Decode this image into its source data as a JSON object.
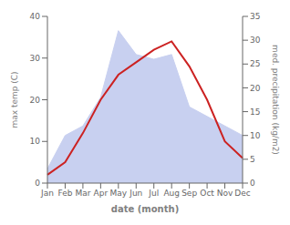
{
  "chart_data": {
    "type": "line",
    "xlabel": "date (month)",
    "ylabel": "max temp (C)",
    "y2label": "med. precipitation (kg/m2)",
    "categories": [
      "Jan",
      "Feb",
      "Mar",
      "Apr",
      "May",
      "Jun",
      "Jul",
      "Aug",
      "Sep",
      "Oct",
      "Nov",
      "Dec"
    ],
    "series": [
      {
        "color": "#cc2222",
        "values": [
          2,
          5,
          12,
          20,
          26,
          29,
          32,
          34,
          28,
          20,
          10,
          6
        ]
      },
      {
        "type": "area",
        "axis": "y2",
        "color": "#c8d0f0",
        "values": [
          3,
          10,
          12,
          18,
          32,
          27,
          26,
          27,
          16,
          14,
          12,
          10
        ]
      }
    ],
    "ylim": [
      0,
      40
    ],
    "yticks": [
      0,
      10,
      20,
      30,
      40
    ],
    "y2lim": [
      0,
      35
    ],
    "y2ticks": [
      0,
      5,
      10,
      15,
      20,
      25,
      30,
      35
    ]
  }
}
